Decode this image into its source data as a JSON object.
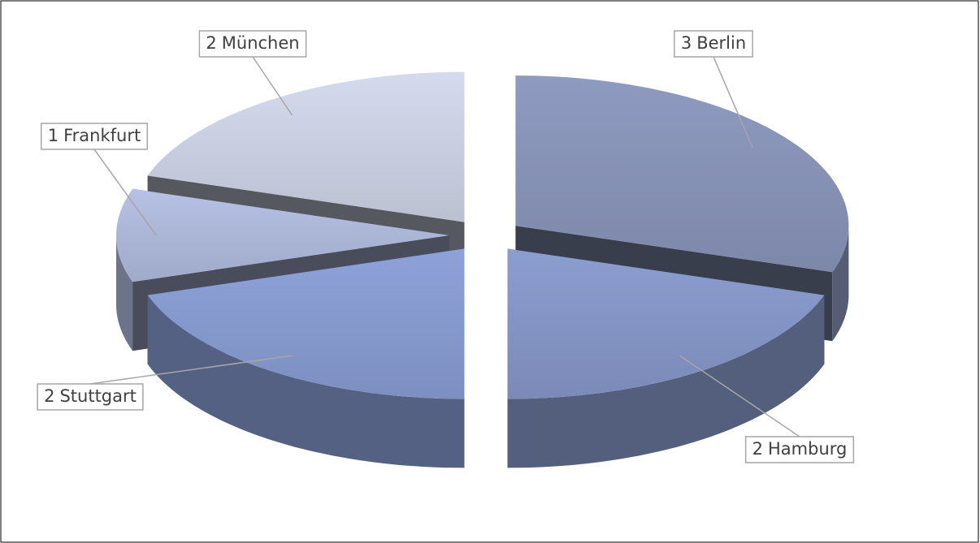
{
  "chart_data": {
    "type": "pie3d",
    "categories": [
      "Berlin",
      "Hamburg",
      "Stuttgart",
      "Frankfurt",
      "München"
    ],
    "values": [
      3,
      2,
      2,
      1,
      2
    ],
    "colors": [
      "#8e9ac0",
      "#8c9dd0",
      "#8ea2da",
      "#b6c1e4",
      "#d5dbee"
    ]
  }
}
